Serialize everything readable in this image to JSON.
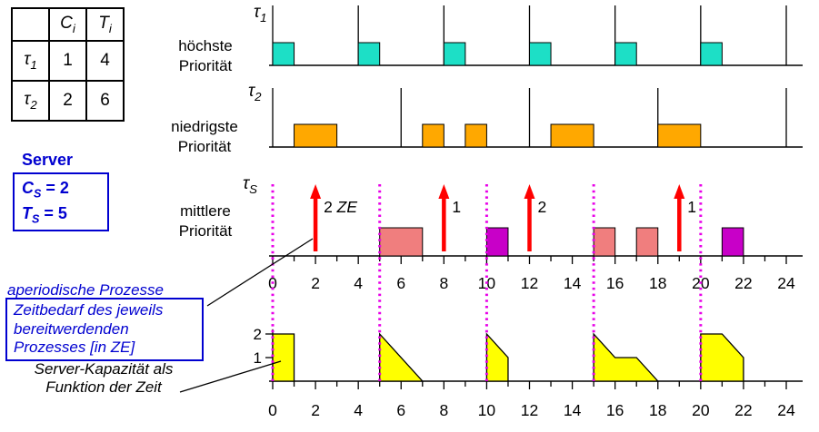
{
  "table": {
    "headers": [
      {
        "base": "C",
        "sub": "i"
      },
      {
        "base": "T",
        "sub": "i"
      }
    ],
    "rows": [
      {
        "name_base": "τ",
        "name_sub": "1",
        "c": "1",
        "t": "4"
      },
      {
        "name_base": "τ",
        "name_sub": "2",
        "c": "2",
        "t": "6"
      }
    ]
  },
  "server": {
    "title": "Server",
    "cs_base": "C",
    "cs_sub": "S",
    "cs_val": " = 2",
    "ts_base": "T",
    "ts_sub": "S",
    "ts_val": " = 5"
  },
  "notes": {
    "aperiodic": "aperiodische Prozesse",
    "zeitbedarf_l1": "Zeitbedarf des jeweils",
    "zeitbedarf_l2": "bereitwerdenden",
    "zeitbedarf_l3": "Prozesses [in ZE]",
    "kapazitaet_l1": "Server-Kapazität als",
    "kapazitaet_l2": "Funktion der Zeit"
  },
  "row_labels": [
    {
      "tau_base": "τ",
      "tau_sub": "1",
      "prio_l1": "höchste",
      "prio_l2": "Priorität"
    },
    {
      "tau_base": "τ",
      "tau_sub": "2",
      "prio_l1": "niedrigste",
      "prio_l2": "Priorität"
    },
    {
      "tau_base": "τ",
      "tau_sub": "S",
      "prio_l1": "mittlere",
      "prio_l2": "Priorität"
    }
  ],
  "colors": {
    "tau1_fill": "#1DDFC6",
    "tau2_fill": "#FFA800",
    "server_pink": "#F07E7E",
    "server_magenta": "#C800C8",
    "capacity_fill": "#FFFF00",
    "arrow_red": "#FF0000",
    "replenish_magenta": "#E800E8",
    "accent_blue": "#0000D0"
  },
  "chart_data": {
    "type": "timeline",
    "time_axis": {
      "min": 0,
      "max": 24,
      "tick_labels": [
        0,
        2,
        4,
        6,
        8,
        10,
        12,
        14,
        16,
        18,
        20,
        22,
        24
      ]
    },
    "tau1": {
      "releases": [
        0,
        4,
        8,
        12,
        16,
        20,
        24
      ],
      "executions": [
        {
          "start": 0,
          "dur": 1
        },
        {
          "start": 4,
          "dur": 1
        },
        {
          "start": 8,
          "dur": 1
        },
        {
          "start": 12,
          "dur": 1
        },
        {
          "start": 16,
          "dur": 1
        },
        {
          "start": 20,
          "dur": 1
        }
      ]
    },
    "tau2": {
      "releases": [
        0,
        6,
        12,
        18,
        24
      ],
      "executions": [
        {
          "start": 1,
          "dur": 2
        },
        {
          "start": 7,
          "dur": 1
        },
        {
          "start": 9,
          "dur": 1
        },
        {
          "start": 13,
          "dur": 2
        },
        {
          "start": 18,
          "dur": 2
        }
      ]
    },
    "server_row": {
      "arrivals": [
        {
          "t": 2,
          "amount": "2",
          "unit": "ZE"
        },
        {
          "t": 8,
          "amount": "1",
          "unit": ""
        },
        {
          "t": 12,
          "amount": "2",
          "unit": ""
        },
        {
          "t": 19,
          "amount": "1",
          "unit": ""
        }
      ],
      "executions": [
        {
          "start": 5,
          "dur": 2,
          "color": "pink"
        },
        {
          "start": 10,
          "dur": 1,
          "color": "magenta"
        },
        {
          "start": 15,
          "dur": 1,
          "color": "pink"
        },
        {
          "start": 17,
          "dur": 1,
          "color": "pink"
        },
        {
          "start": 21,
          "dur": 1,
          "color": "magenta"
        }
      ]
    },
    "replenishments": [
      0,
      5,
      10,
      15,
      20
    ],
    "capacity": {
      "y_ticks": [
        {
          "v": 2,
          "label": "2"
        },
        {
          "v": 1,
          "label": "1"
        }
      ],
      "segments": [
        [
          [
            0,
            2
          ],
          [
            1,
            2
          ],
          [
            1,
            0
          ]
        ],
        [
          [
            5,
            2
          ],
          [
            7,
            0
          ]
        ],
        [
          [
            10,
            2
          ],
          [
            11,
            1
          ],
          [
            11,
            0
          ]
        ],
        [
          [
            15,
            2
          ],
          [
            16,
            1
          ],
          [
            17,
            1
          ],
          [
            18,
            0
          ]
        ],
        [
          [
            20,
            2
          ],
          [
            21,
            2
          ],
          [
            22,
            1
          ],
          [
            22,
            0
          ]
        ]
      ]
    }
  }
}
